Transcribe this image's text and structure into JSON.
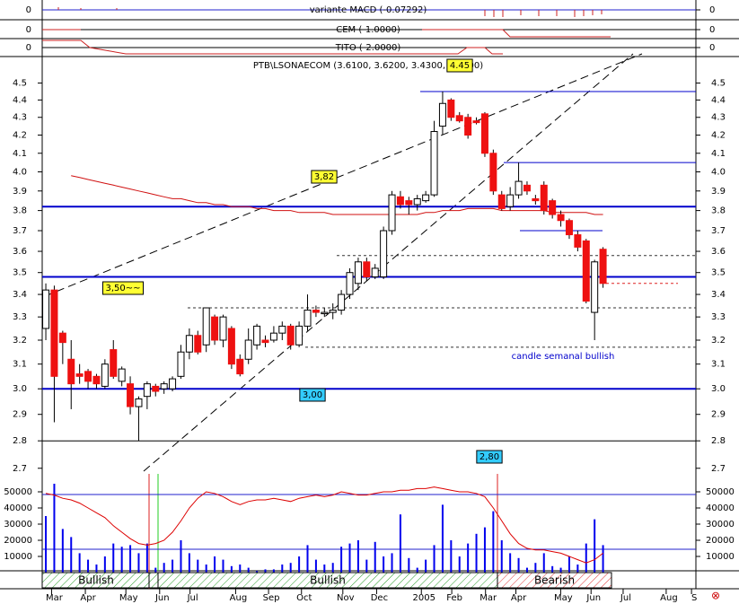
{
  "chart_data": {
    "type": "candlestick",
    "title": "PTB\\LSONAECOM (3.6100, 3.6200, 3.4300, 3.4500)",
    "log_scale": true,
    "xlim": [
      -0.43,
      77
    ],
    "xticks": [
      {
        "value": 1,
        "label": "Mar"
      },
      {
        "value": 5,
        "label": "Apr"
      },
      {
        "value": 9.8,
        "label": "May"
      },
      {
        "value": 13.8,
        "label": "Jun"
      },
      {
        "value": 17.4,
        "label": "Jul"
      },
      {
        "value": 22.8,
        "label": "Aug"
      },
      {
        "value": 26.7,
        "label": "Sep"
      },
      {
        "value": 30.6,
        "label": "Oct"
      },
      {
        "value": 35.5,
        "label": "Nov"
      },
      {
        "value": 39.5,
        "label": "Dec"
      },
      {
        "value": 44.8,
        "label": "2005"
      },
      {
        "value": 48.4,
        "label": "Feb"
      },
      {
        "value": 52.4,
        "label": "Mar"
      },
      {
        "value": 56,
        "label": "Apr"
      },
      {
        "value": 61.3,
        "label": "May"
      },
      {
        "value": 64.9,
        "label": "Jun"
      },
      {
        "value": 68.7,
        "label": "Jul"
      },
      {
        "value": 73.8,
        "label": "Aug"
      },
      {
        "value": 76.8,
        "label": "S"
      }
    ],
    "ylim": [
      2.68,
      4.65
    ],
    "yticks": [
      2.7,
      2.8,
      2.9,
      {
        "value": 3,
        "label": "3.0"
      },
      3.1,
      3.2,
      3.3,
      3.4,
      3.5,
      3.6,
      3.7,
      3.8,
      3.9,
      {
        "value": 4,
        "label": "4.0"
      },
      4.1,
      4.2,
      4.3,
      4.4,
      4.5
    ],
    "up_color": "#ffffff",
    "down_color": "#ee1111",
    "open": [
      3.25,
      3.42,
      3.23,
      3.12,
      3.06,
      3.07,
      3.05,
      3.01,
      3.16,
      3.03,
      3.02,
      2.93,
      2.97,
      3.01,
      3.0,
      3.0,
      3.05,
      3.15,
      3.22,
      3.18,
      3.3,
      3.2,
      3.25,
      3.12,
      3.12,
      3.18,
      3.2,
      3.2,
      3.23,
      3.26,
      3.18,
      3.26,
      3.33,
      3.32,
      3.32,
      3.33,
      3.4,
      3.45,
      3.55,
      3.48,
      3.48,
      3.7,
      3.87,
      3.85,
      3.83,
      3.85,
      3.88,
      4.25,
      4.4,
      4.31,
      4.3,
      4.28,
      4.32,
      4.1,
      3.88,
      3.82,
      3.88,
      3.93,
      3.86,
      3.93,
      3.85,
      3.78,
      3.75,
      3.68,
      3.65,
      3.32,
      3.61
    ],
    "high": [
      3.45,
      3.44,
      3.24,
      3.2,
      3.1,
      3.08,
      3.06,
      3.12,
      3.2,
      3.09,
      3.05,
      2.97,
      3.03,
      3.02,
      3.03,
      3.05,
      3.18,
      3.25,
      3.24,
      3.34,
      3.31,
      3.31,
      3.26,
      3.14,
      3.25,
      3.27,
      3.22,
      3.26,
      3.28,
      3.27,
      3.28,
      3.4,
      3.35,
      3.34,
      3.36,
      3.42,
      3.52,
      3.57,
      3.57,
      3.54,
      3.72,
      3.9,
      3.9,
      3.87,
      3.88,
      3.9,
      4.28,
      4.45,
      4.41,
      4.33,
      4.32,
      4.3,
      4.33,
      4.12,
      3.9,
      3.92,
      4.05,
      3.95,
      3.88,
      3.95,
      3.86,
      3.8,
      3.76,
      3.7,
      3.66,
      3.56,
      3.62
    ],
    "low": [
      3.2,
      2.87,
      3.1,
      2.92,
      3.02,
      3.0,
      3.0,
      3.0,
      3.04,
      3.01,
      2.9,
      2.8,
      2.92,
      2.97,
      2.98,
      2.99,
      3.04,
      3.12,
      3.14,
      3.15,
      3.18,
      3.17,
      3.08,
      3.05,
      3.1,
      3.16,
      3.17,
      3.19,
      3.2,
      3.16,
      3.17,
      3.24,
      3.3,
      3.3,
      3.29,
      3.31,
      3.38,
      3.42,
      3.46,
      3.47,
      3.47,
      3.68,
      3.81,
      3.78,
      3.8,
      3.84,
      3.87,
      4.2,
      4.28,
      4.27,
      4.18,
      4.26,
      4.08,
      3.88,
      3.8,
      3.8,
      3.86,
      3.88,
      3.83,
      3.78,
      3.76,
      3.72,
      3.66,
      3.6,
      3.36,
      3.2,
      3.43
    ],
    "close": [
      3.42,
      3.05,
      3.19,
      3.02,
      3.05,
      3.03,
      3.02,
      3.1,
      3.05,
      3.08,
      2.93,
      2.96,
      3.02,
      2.99,
      3.02,
      3.04,
      3.15,
      3.22,
      3.15,
      3.34,
      3.2,
      3.3,
      3.1,
      3.06,
      3.2,
      3.26,
      3.19,
      3.23,
      3.26,
      3.18,
      3.26,
      3.33,
      3.32,
      3.32,
      3.33,
      3.4,
      3.5,
      3.55,
      3.48,
      3.52,
      3.7,
      3.88,
      3.83,
      3.83,
      3.86,
      3.88,
      4.22,
      4.38,
      4.3,
      4.28,
      4.2,
      4.27,
      4.1,
      3.9,
      3.81,
      3.88,
      3.95,
      3.9,
      3.85,
      3.8,
      3.78,
      3.75,
      3.68,
      3.62,
      3.37,
      3.55,
      3.45
    ],
    "ma": {
      "color": "#d01010",
      "values": [
        null,
        null,
        null,
        3.98,
        3.97,
        3.96,
        3.95,
        3.94,
        3.93,
        3.92,
        3.91,
        3.9,
        3.89,
        3.88,
        3.87,
        3.86,
        3.86,
        3.85,
        3.84,
        3.84,
        3.83,
        3.83,
        3.82,
        3.82,
        3.82,
        3.81,
        3.81,
        3.8,
        3.8,
        3.8,
        3.79,
        3.79,
        3.79,
        3.79,
        3.78,
        3.78,
        3.78,
        3.78,
        3.78,
        3.78,
        3.78,
        3.78,
        3.78,
        3.78,
        3.78,
        3.79,
        3.79,
        3.8,
        3.8,
        3.8,
        3.81,
        3.81,
        3.81,
        3.81,
        3.8,
        3.8,
        3.8,
        3.8,
        3.8,
        3.8,
        3.79,
        3.79,
        3.79,
        3.79,
        3.79,
        3.78,
        3.78
      ]
    },
    "support_lines": [
      3.82,
      3.48,
      3.0
    ],
    "resistance_lines": [
      4.45,
      4.05,
      3.7
    ],
    "dotted_lines": [
      3.58,
      3.34,
      3.17
    ],
    "stop_line": 3.45,
    "floor_line": 2.8,
    "annotations": [
      "3,82",
      "3,50~~",
      "3,00",
      "2,80",
      "4.45",
      "candle semanal bullish"
    ],
    "volume": {
      "color": "#0000ee",
      "ylim": [
        0,
        60000
      ],
      "yticks": [
        10000,
        20000,
        30000,
        40000,
        50000
      ],
      "values": [
        35000,
        55000,
        27000,
        22000,
        12000,
        8000,
        5000,
        10000,
        18000,
        16000,
        17000,
        12000,
        18000,
        3000,
        6000,
        8000,
        20000,
        12000,
        8000,
        5000,
        10000,
        8000,
        4000,
        5000,
        3000,
        1000,
        2000,
        2000,
        5000,
        6000,
        10000,
        17000,
        8000,
        5000,
        6000,
        16000,
        18000,
        20000,
        8000,
        19000,
        10000,
        12000,
        36000,
        9000,
        3000,
        8000,
        17000,
        42000,
        20000,
        10000,
        18000,
        24000,
        28000,
        38000,
        20000,
        12000,
        9000,
        3000,
        6000,
        12000,
        4000,
        3000,
        10000,
        5000,
        18000,
        33000,
        17000
      ]
    },
    "oscillator": {
      "color": "#dd0000",
      "values": [
        49000,
        48000,
        46000,
        45000,
        43000,
        40000,
        37000,
        34000,
        29000,
        25000,
        21000,
        18000,
        17000,
        18000,
        20000,
        25000,
        32000,
        40000,
        46000,
        50000,
        49000,
        47000,
        44000,
        42000,
        44000,
        45000,
        45000,
        46000,
        45000,
        44000,
        46000,
        47000,
        48000,
        47000,
        48000,
        50000,
        49000,
        48000,
        48000,
        49000,
        50000,
        50000,
        51000,
        51000,
        52000,
        52000,
        53000,
        52000,
        51000,
        50000,
        50000,
        49000,
        47000,
        40000,
        32000,
        24000,
        18000,
        15000,
        14000,
        14000,
        13000,
        12000,
        10000,
        8000,
        6000,
        8000,
        12000
      ]
    },
    "bands": [
      "Bullish",
      "Bullish",
      "Bearish"
    ],
    "indicator_panels": [
      {
        "title": "variante MACD (-0.07292)",
        "yticks": [
          0
        ]
      },
      {
        "title": "CEM (-1.0000)",
        "yticks": [
          0
        ]
      },
      {
        "title": "TITO (-2.0000)",
        "yticks": [
          0
        ]
      }
    ]
  }
}
